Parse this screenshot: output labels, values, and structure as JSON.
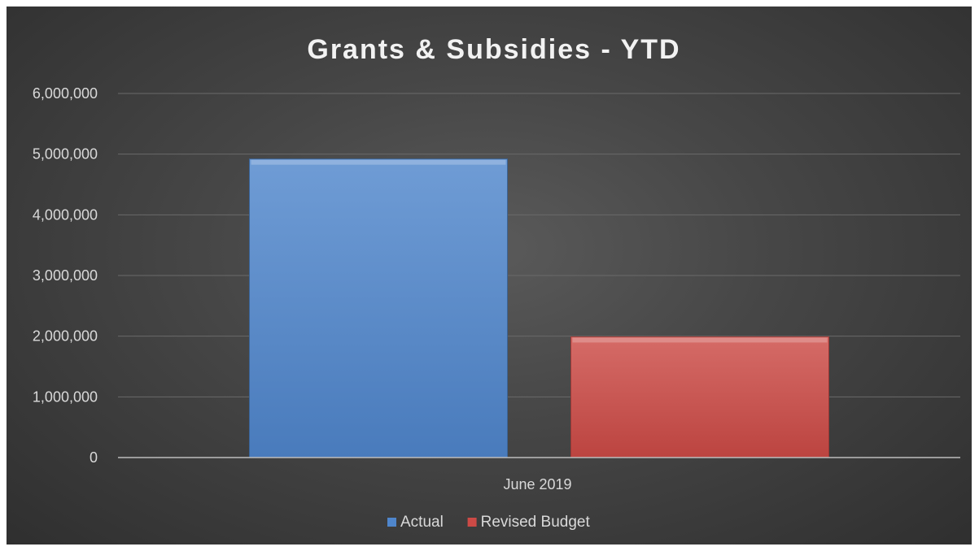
{
  "chart_data": {
    "type": "bar",
    "title": "Grants & Subsidies - YTD",
    "xlabel": "",
    "ylabel": "",
    "categories": [
      "June 2019"
    ],
    "series": [
      {
        "name": "Actual",
        "color": "#4f86cc",
        "values": [
          4920000
        ]
      },
      {
        "name": "Revised Budget",
        "color": "#cc4a46",
        "values": [
          1990000
        ]
      }
    ],
    "ylim": [
      0,
      6000000
    ],
    "yticks": [
      0,
      1000000,
      2000000,
      3000000,
      4000000,
      5000000,
      6000000
    ],
    "ytick_labels": [
      "0",
      "1,000,000",
      "2,000,000",
      "3,000,000",
      "4,000,000",
      "5,000,000",
      "6,000,000"
    ],
    "grid": true,
    "legend_position": "bottom"
  }
}
